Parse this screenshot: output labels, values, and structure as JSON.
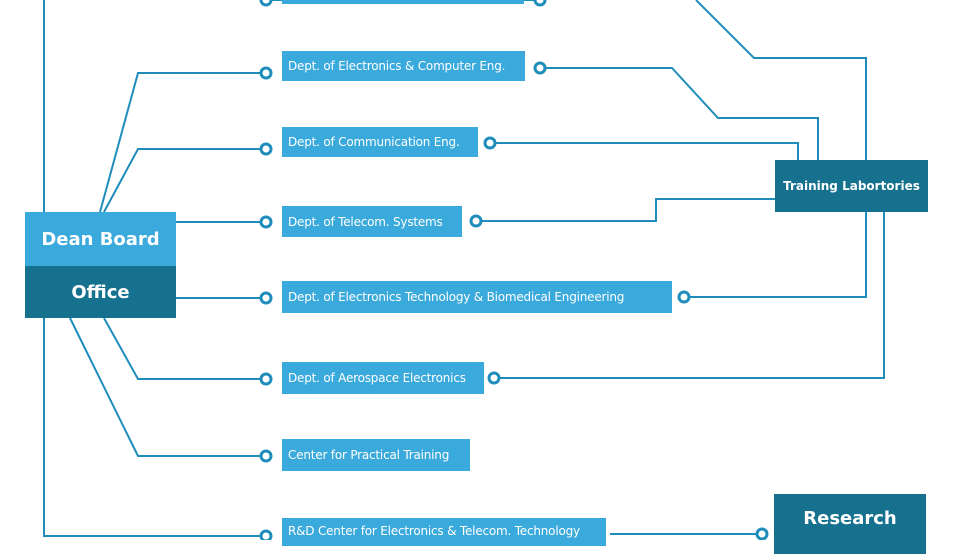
{
  "nodes": {
    "top_box": "",
    "dean_board": "Dean Board",
    "office": "Office",
    "training_labs": "Training Labortories",
    "research": "Research",
    "depts": [
      "Dept. of Electronics & Computer Eng.",
      "Dept. of Communication Eng.",
      "Dept. of Telecom. Systems",
      "Dept. of Electronics  Technology & Biomedical Engineering",
      "Dept. of Aerospace Electronics",
      "Center for Practical Training",
      "R&D Center for Electronics & Telecom. Technology"
    ]
  },
  "colors": {
    "light": "#3aa9dc",
    "dark": "#16718f",
    "line": "#1f8dbb"
  }
}
